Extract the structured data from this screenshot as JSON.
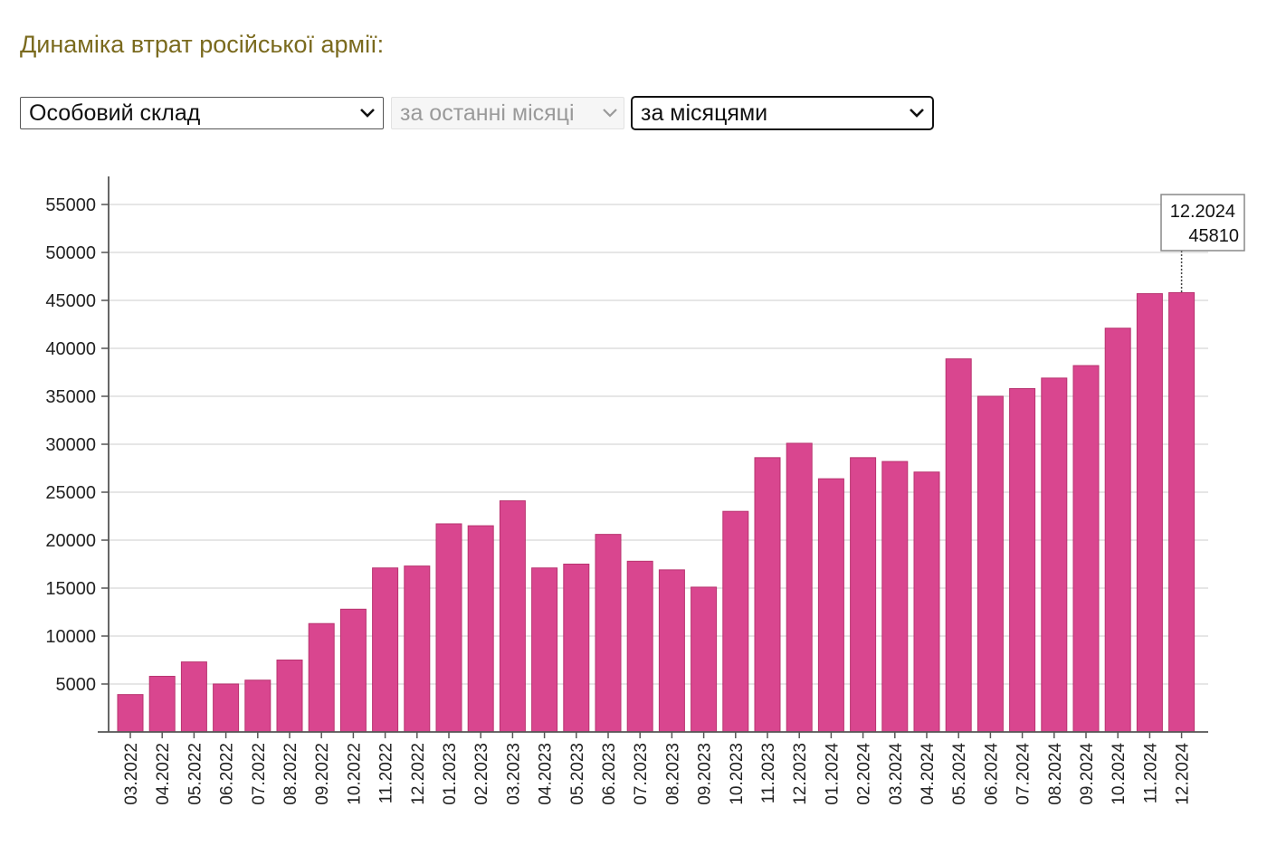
{
  "header": {
    "title": "Динаміка втрат російської армії:"
  },
  "controls": {
    "category": {
      "value": "Особовий склад",
      "icon": "chevron-down-icon"
    },
    "period": {
      "value": "за останні місяці",
      "icon": "chevron-down-icon",
      "disabled": true
    },
    "grouping": {
      "value": "за місяцями",
      "icon": "chevron-down-icon"
    }
  },
  "colors": {
    "bar": "#d9468f",
    "bar_stroke": "#b8336f",
    "title": "#7a6a1e",
    "grid": "#dddddd",
    "axis": "#555555"
  },
  "chart_data": {
    "type": "bar",
    "categories": [
      "03.2022",
      "04.2022",
      "05.2022",
      "06.2022",
      "07.2022",
      "08.2022",
      "09.2022",
      "10.2022",
      "11.2022",
      "12.2022",
      "01.2023",
      "02.2023",
      "03.2023",
      "04.2023",
      "05.2023",
      "06.2023",
      "07.2023",
      "08.2023",
      "09.2023",
      "10.2023",
      "11.2023",
      "12.2023",
      "01.2024",
      "02.2024",
      "03.2024",
      "04.2024",
      "05.2024",
      "06.2024",
      "07.2024",
      "08.2024",
      "09.2024",
      "10.2024",
      "11.2024",
      "12.2024"
    ],
    "values": [
      3900,
      5800,
      7300,
      5000,
      5400,
      7500,
      11300,
      12800,
      17100,
      17300,
      21700,
      21500,
      24100,
      17100,
      17500,
      20600,
      17800,
      16900,
      15100,
      23000,
      28600,
      30100,
      26400,
      28600,
      28200,
      27100,
      38900,
      35000,
      35800,
      36900,
      38200,
      42100,
      45700,
      45810
    ],
    "yticks": [
      5000,
      10000,
      15000,
      20000,
      25000,
      30000,
      35000,
      40000,
      45000,
      50000,
      55000
    ],
    "ylim": [
      0,
      58000
    ],
    "grid": true,
    "tooltip": {
      "category": "12.2024",
      "value": "45810"
    }
  }
}
